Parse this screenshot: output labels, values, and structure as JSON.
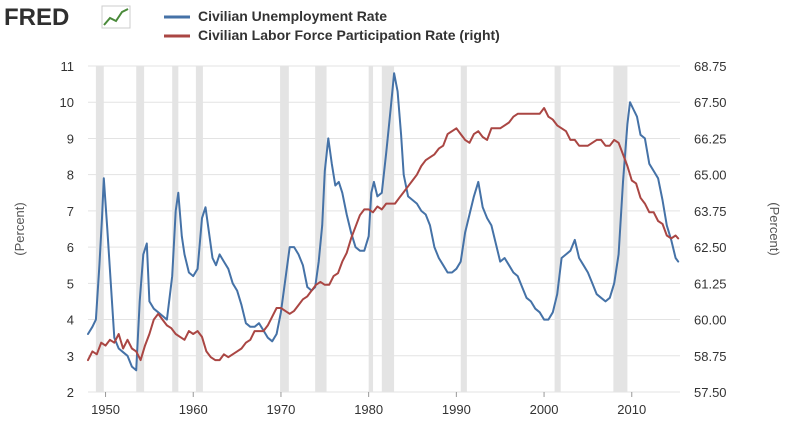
{
  "header": {
    "logo_text": "FRED",
    "logo_icon": "line-chart-icon"
  },
  "colors": {
    "background": "#ffffff",
    "plot_background": "#ffffff",
    "gridline": "#e3e3e3",
    "recession": "#e4e4e4",
    "axis_text": "#333333",
    "logo_accent": "#4a8a3a"
  },
  "chart_data": {
    "type": "line",
    "x_axis": {
      "min": 1948,
      "max": 2015.5,
      "ticks": [
        1950,
        1960,
        1970,
        1980,
        1990,
        2000,
        2010
      ],
      "tick_labels": [
        "1950",
        "1960",
        "1970",
        "1980",
        "1990",
        "2000",
        "2010"
      ]
    },
    "y_left": {
      "label": "(Percent)",
      "min": 2,
      "max": 11,
      "ticks": [
        2,
        3,
        4,
        5,
        6,
        7,
        8,
        9,
        10,
        11
      ],
      "tick_labels": [
        "2",
        "3",
        "4",
        "5",
        "6",
        "7",
        "8",
        "9",
        "10",
        "11"
      ]
    },
    "y_right": {
      "label": "(Percent)",
      "min": 57.5,
      "max": 68.75,
      "ticks": [
        57.5,
        58.75,
        60.0,
        61.25,
        62.5,
        63.75,
        65.0,
        66.25,
        67.5,
        68.75
      ],
      "tick_labels": [
        "57.50",
        "58.75",
        "60.00",
        "61.25",
        "62.50",
        "63.75",
        "65.00",
        "66.25",
        "67.50",
        "68.75"
      ]
    },
    "grid": true,
    "legend_position": "top-left",
    "recessions": [
      [
        1948.9,
        1949.8
      ],
      [
        1953.5,
        1954.4
      ],
      [
        1957.6,
        1958.3
      ],
      [
        1960.3,
        1961.1
      ],
      [
        1969.9,
        1970.9
      ],
      [
        1973.9,
        1975.2
      ],
      [
        1980.0,
        1980.5
      ],
      [
        1981.5,
        1982.9
      ],
      [
        1990.5,
        1991.2
      ],
      [
        2001.2,
        2001.9
      ],
      [
        2007.9,
        2009.5
      ]
    ],
    "series": [
      {
        "name": "Civilian Unemployment Rate",
        "axis": "left",
        "color": "#4572a7",
        "x": [
          1948.0,
          1948.5,
          1948.9,
          1949.3,
          1949.6,
          1949.8,
          1950.2,
          1950.6,
          1951.0,
          1951.5,
          1952.0,
          1952.5,
          1953.0,
          1953.5,
          1953.9,
          1954.3,
          1954.7,
          1955.0,
          1955.5,
          1956.0,
          1956.5,
          1957.0,
          1957.6,
          1958.0,
          1958.3,
          1958.7,
          1959.0,
          1959.5,
          1960.0,
          1960.5,
          1961.0,
          1961.4,
          1961.8,
          1962.2,
          1962.6,
          1963.0,
          1963.5,
          1964.0,
          1964.5,
          1965.0,
          1965.5,
          1966.0,
          1966.5,
          1967.0,
          1967.5,
          1968.0,
          1968.5,
          1969.0,
          1969.5,
          1970.0,
          1970.5,
          1971.0,
          1971.5,
          1972.0,
          1972.5,
          1973.0,
          1973.5,
          1973.9,
          1974.3,
          1974.7,
          1975.0,
          1975.4,
          1975.8,
          1976.2,
          1976.6,
          1977.0,
          1977.5,
          1978.0,
          1978.5,
          1979.0,
          1979.5,
          1980.0,
          1980.3,
          1980.6,
          1981.0,
          1981.5,
          1982.0,
          1982.5,
          1982.9,
          1983.3,
          1983.7,
          1984.0,
          1984.5,
          1985.0,
          1985.5,
          1986.0,
          1986.5,
          1987.0,
          1987.5,
          1988.0,
          1988.5,
          1989.0,
          1989.5,
          1990.0,
          1990.5,
          1991.0,
          1991.5,
          1992.0,
          1992.5,
          1993.0,
          1993.5,
          1994.0,
          1994.5,
          1995.0,
          1995.5,
          1996.0,
          1996.5,
          1997.0,
          1997.5,
          1998.0,
          1998.5,
          1999.0,
          1999.5,
          2000.0,
          2000.5,
          2001.0,
          2001.5,
          2002.0,
          2002.5,
          2003.0,
          2003.5,
          2004.0,
          2004.5,
          2005.0,
          2005.5,
          2006.0,
          2006.5,
          2007.0,
          2007.5,
          2008.0,
          2008.5,
          2009.0,
          2009.5,
          2009.8,
          2010.2,
          2010.6,
          2011.0,
          2011.5,
          2012.0,
          2012.5,
          2013.0,
          2013.5,
          2014.0,
          2014.5,
          2015.0,
          2015.3
        ],
        "y": [
          3.6,
          3.8,
          4.0,
          5.5,
          6.8,
          7.9,
          6.5,
          5.0,
          3.5,
          3.2,
          3.1,
          3.0,
          2.7,
          2.6,
          4.5,
          5.8,
          6.1,
          4.5,
          4.3,
          4.2,
          4.1,
          4.0,
          5.2,
          7.0,
          7.5,
          6.3,
          5.8,
          5.3,
          5.2,
          5.4,
          6.8,
          7.1,
          6.4,
          5.7,
          5.5,
          5.8,
          5.6,
          5.4,
          5.0,
          4.8,
          4.4,
          3.9,
          3.8,
          3.8,
          3.9,
          3.7,
          3.5,
          3.4,
          3.6,
          4.2,
          5.1,
          6.0,
          6.0,
          5.8,
          5.5,
          4.9,
          4.8,
          4.9,
          5.6,
          6.6,
          8.1,
          9.0,
          8.3,
          7.7,
          7.8,
          7.5,
          6.9,
          6.4,
          6.0,
          5.9,
          5.9,
          6.3,
          7.5,
          7.8,
          7.4,
          7.5,
          8.6,
          9.8,
          10.8,
          10.3,
          9.1,
          8.0,
          7.4,
          7.3,
          7.2,
          7.0,
          6.9,
          6.6,
          6.0,
          5.7,
          5.5,
          5.3,
          5.3,
          5.4,
          5.6,
          6.4,
          6.9,
          7.4,
          7.8,
          7.1,
          6.8,
          6.6,
          6.1,
          5.6,
          5.7,
          5.5,
          5.3,
          5.2,
          4.9,
          4.6,
          4.5,
          4.3,
          4.2,
          4.0,
          4.0,
          4.2,
          4.7,
          5.7,
          5.8,
          5.9,
          6.2,
          5.7,
          5.5,
          5.3,
          5.0,
          4.7,
          4.6,
          4.5,
          4.6,
          5.0,
          5.8,
          7.8,
          9.4,
          10.0,
          9.8,
          9.6,
          9.1,
          9.0,
          8.3,
          8.1,
          7.9,
          7.3,
          6.6,
          6.2,
          5.7,
          5.6
        ]
      },
      {
        "name": "Civilian Labor Force Participation Rate (right)",
        "axis": "right",
        "color": "#aa4643",
        "x": [
          1948.0,
          1948.5,
          1949.0,
          1949.5,
          1950.0,
          1950.5,
          1951.0,
          1951.5,
          1952.0,
          1952.5,
          1953.0,
          1953.5,
          1954.0,
          1954.5,
          1955.0,
          1955.5,
          1956.0,
          1956.5,
          1957.0,
          1957.5,
          1958.0,
          1958.5,
          1959.0,
          1959.5,
          1960.0,
          1960.5,
          1961.0,
          1961.5,
          1962.0,
          1962.5,
          1963.0,
          1963.5,
          1964.0,
          1964.5,
          1965.0,
          1965.5,
          1966.0,
          1966.5,
          1967.0,
          1967.5,
          1968.0,
          1968.5,
          1969.0,
          1969.5,
          1970.0,
          1970.5,
          1971.0,
          1971.5,
          1972.0,
          1972.5,
          1973.0,
          1973.5,
          1974.0,
          1974.5,
          1975.0,
          1975.5,
          1976.0,
          1976.5,
          1977.0,
          1977.5,
          1978.0,
          1978.5,
          1979.0,
          1979.5,
          1980.0,
          1980.5,
          1981.0,
          1981.5,
          1982.0,
          1982.5,
          1983.0,
          1983.5,
          1984.0,
          1984.5,
          1985.0,
          1985.5,
          1986.0,
          1986.5,
          1987.0,
          1987.5,
          1988.0,
          1988.5,
          1989.0,
          1989.5,
          1990.0,
          1990.5,
          1991.0,
          1991.5,
          1992.0,
          1992.5,
          1993.0,
          1993.5,
          1994.0,
          1994.5,
          1995.0,
          1995.5,
          1996.0,
          1996.5,
          1997.0,
          1997.5,
          1998.0,
          1998.5,
          1999.0,
          1999.5,
          2000.0,
          2000.5,
          2001.0,
          2001.5,
          2002.0,
          2002.5,
          2003.0,
          2003.5,
          2004.0,
          2004.5,
          2005.0,
          2005.5,
          2006.0,
          2006.5,
          2007.0,
          2007.5,
          2008.0,
          2008.5,
          2009.0,
          2009.5,
          2010.0,
          2010.5,
          2011.0,
          2011.5,
          2012.0,
          2012.5,
          2013.0,
          2013.5,
          2014.0,
          2014.5,
          2015.0,
          2015.3
        ],
        "y": [
          58.6,
          58.9,
          58.8,
          59.2,
          59.1,
          59.3,
          59.2,
          59.5,
          59.0,
          59.3,
          59.0,
          58.9,
          58.6,
          59.1,
          59.5,
          60.0,
          60.2,
          60.0,
          59.8,
          59.7,
          59.5,
          59.4,
          59.3,
          59.6,
          59.5,
          59.6,
          59.4,
          58.9,
          58.7,
          58.6,
          58.6,
          58.8,
          58.7,
          58.8,
          58.9,
          59.0,
          59.2,
          59.3,
          59.6,
          59.6,
          59.6,
          59.8,
          60.1,
          60.4,
          60.4,
          60.3,
          60.2,
          60.3,
          60.5,
          60.7,
          60.8,
          61.0,
          61.2,
          61.3,
          61.2,
          61.2,
          61.5,
          61.6,
          62.0,
          62.3,
          62.8,
          63.2,
          63.6,
          63.8,
          63.8,
          63.7,
          63.9,
          63.8,
          64.0,
          64.0,
          64.0,
          64.2,
          64.4,
          64.6,
          64.8,
          65.0,
          65.3,
          65.5,
          65.6,
          65.7,
          65.9,
          66.0,
          66.4,
          66.5,
          66.6,
          66.4,
          66.2,
          66.1,
          66.4,
          66.5,
          66.3,
          66.2,
          66.6,
          66.6,
          66.6,
          66.7,
          66.8,
          67.0,
          67.1,
          67.1,
          67.1,
          67.1,
          67.1,
          67.1,
          67.3,
          67.0,
          66.9,
          66.7,
          66.6,
          66.5,
          66.2,
          66.2,
          66.0,
          66.0,
          66.0,
          66.1,
          66.2,
          66.2,
          66.0,
          66.0,
          66.2,
          66.1,
          65.7,
          65.3,
          64.8,
          64.7,
          64.2,
          64.0,
          63.7,
          63.7,
          63.4,
          63.3,
          62.9,
          62.8,
          62.9,
          62.8
        ]
      }
    ]
  }
}
